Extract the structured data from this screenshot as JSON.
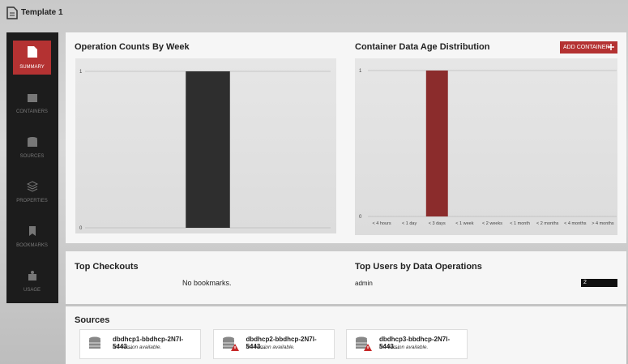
{
  "header": {
    "title": "Template 1"
  },
  "nav": [
    "SUMMARY",
    "CONTAINERS",
    "SOURCES",
    "PROPERTIES",
    "BOOKMARKS",
    "USAGE"
  ],
  "add_container": "ADD CONTAINER",
  "chart_data": [
    {
      "type": "bar",
      "title": "Operation Counts By Week",
      "categories": [
        null
      ],
      "values": [
        1
      ],
      "color": "#2e2e2e",
      "ylim": [
        0,
        1
      ],
      "yticks": [
        0,
        1
      ],
      "grid": true
    },
    {
      "type": "bar",
      "title": "Container Data Age Distribution",
      "categories": [
        "< 4 hours",
        "< 1 day",
        "< 3 days",
        "< 1 week",
        "< 2 weeks",
        "< 1 month",
        "< 2 months",
        "< 4 months",
        "> 4 months"
      ],
      "values": [
        0,
        0,
        1,
        0,
        0,
        0,
        0,
        0,
        0
      ],
      "color": "#8b2c2c",
      "ylim": [
        0,
        1
      ],
      "yticks": [
        0,
        1
      ],
      "grid": true
    }
  ],
  "top_checkouts": {
    "title": "Top Checkouts",
    "empty": "No bookmarks."
  },
  "top_users": {
    "title": "Top Users by Data Operations",
    "rows": [
      {
        "name": "admin",
        "count": 2
      }
    ]
  },
  "sources": {
    "title": "Sources",
    "items": [
      {
        "name": "dbdhcp1-bbdhcp-2N7l-5443...",
        "status": "No version available.",
        "warning": false
      },
      {
        "name": "dbdhcp2-bbdhcp-2N7l-5443...",
        "status": "No version available.",
        "warning": true
      },
      {
        "name": "dbdhcp3-bbdhcp-2N7l-5443...",
        "status": "No version available.",
        "warning": true
      }
    ]
  }
}
